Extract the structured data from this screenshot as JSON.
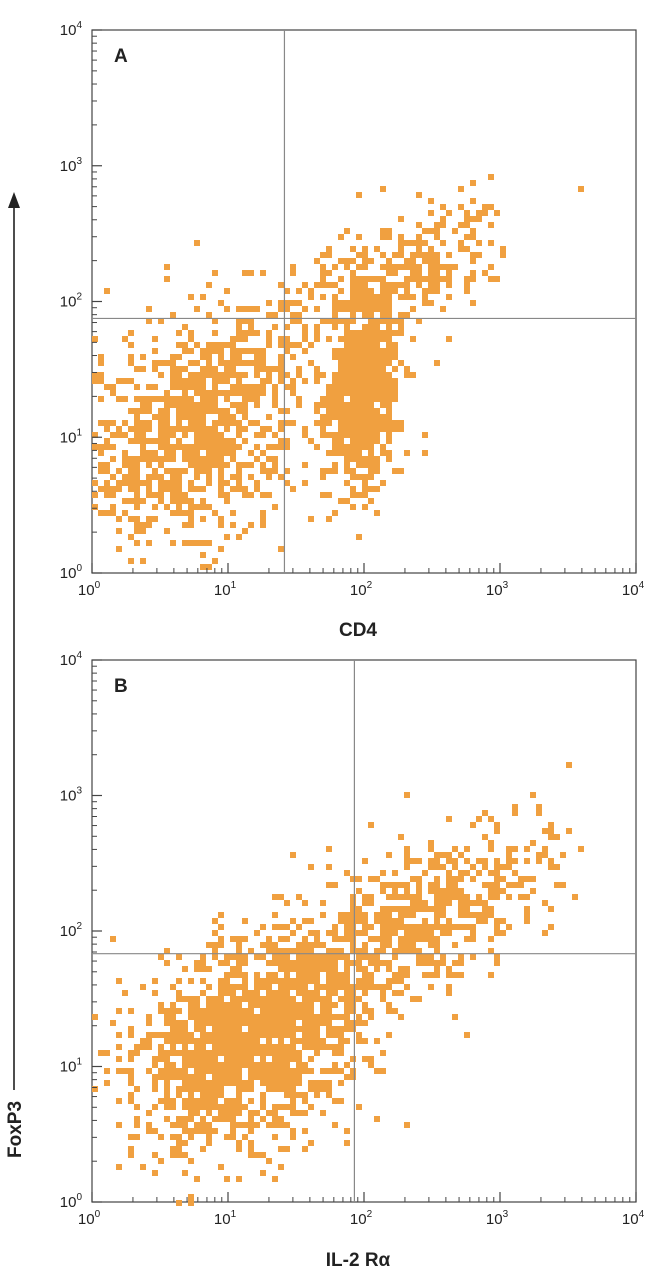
{
  "chart_data": [
    {
      "type": "scatter",
      "panel_label": "A",
      "xlabel": "CD4",
      "ylabel": "FoxP3",
      "x_scale": "log",
      "y_scale": "log",
      "xlim": [
        1,
        10000
      ],
      "ylim": [
        1,
        10000
      ],
      "x_ticks": [
        "1",
        "10",
        "100",
        "1000",
        "10000"
      ],
      "y_ticks": [
        "1",
        "10",
        "100",
        "1000",
        "10000"
      ],
      "tick_base": "10",
      "tick_exponents": [
        "0",
        "1",
        "2",
        "3",
        "4"
      ],
      "quadrant_x": 26,
      "quadrant_y": 75,
      "point_color": "#f0a040",
      "line_color": "#888888",
      "clusters": [
        {
          "n": 900,
          "cx": 6,
          "cy": 12,
          "sx": 0.42,
          "sy": 0.42
        },
        {
          "n": 700,
          "cx": 100,
          "cy": 20,
          "sx": 0.13,
          "sy": 0.32
        },
        {
          "n": 260,
          "cx": 100,
          "cy": 120,
          "sx": 0.38,
          "sy": 0.25
        },
        {
          "n": 120,
          "cx": 350,
          "cy": 200,
          "sx": 0.28,
          "sy": 0.2
        }
      ]
    },
    {
      "type": "scatter",
      "panel_label": "B",
      "xlabel": "IL-2 Rα",
      "ylabel": "FoxP3",
      "x_scale": "log",
      "y_scale": "log",
      "xlim": [
        1,
        10000
      ],
      "ylim": [
        1,
        10000
      ],
      "x_ticks": [
        "1",
        "10",
        "100",
        "1000",
        "10000"
      ],
      "y_ticks": [
        "1",
        "10",
        "100",
        "1000",
        "10000"
      ],
      "tick_base": "10",
      "tick_exponents": [
        "0",
        "1",
        "2",
        "3",
        "4"
      ],
      "quadrant_x": 85,
      "quadrant_y": 68,
      "point_color": "#f0a040",
      "line_color": "#888888",
      "clusters": [
        {
          "n": 1500,
          "cx": 14,
          "cy": 15,
          "sx": 0.45,
          "sy": 0.38
        },
        {
          "n": 450,
          "cx": 200,
          "cy": 110,
          "sx": 0.4,
          "sy": 0.3
        },
        {
          "n": 150,
          "cx": 700,
          "cy": 200,
          "sx": 0.35,
          "sy": 0.25
        }
      ]
    }
  ],
  "shared_y_axis_label": "FoxP3"
}
